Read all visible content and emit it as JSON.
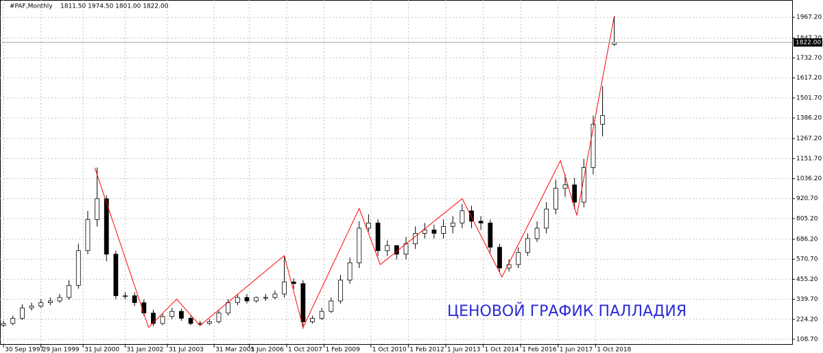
{
  "chart_data": {
    "type": "candlestick",
    "title": "#PAF,Monthly",
    "subtitle": "1811.50 1974.50 1801.00 1822.00",
    "annotation": "ЦЕНОВОЙ ГРАФИК ПАЛЛАДИЯ",
    "x": [
      0,
      4,
      8,
      12,
      16,
      20,
      24,
      28,
      32,
      36,
      40,
      44,
      48,
      52,
      56,
      60,
      64,
      68,
      72,
      76,
      80,
      84,
      88,
      92,
      96,
      100,
      104,
      108,
      112,
      116,
      120,
      124,
      128,
      132,
      136,
      140,
      144,
      148,
      152,
      156,
      160,
      164,
      168,
      172,
      176,
      180,
      184,
      188,
      192,
      196,
      200,
      204,
      208,
      212,
      216,
      220,
      224,
      228,
      232,
      236,
      240,
      244,
      248,
      252,
      256,
      261
    ],
    "open": [
      190,
      200,
      230,
      290,
      300,
      320,
      330,
      350,
      420,
      620,
      800,
      920,
      600,
      360,
      360,
      320,
      260,
      200,
      240,
      270,
      230,
      200,
      200,
      210,
      260,
      320,
      350,
      330,
      350,
      350,
      370,
      440,
      430,
      210,
      230,
      270,
      330,
      450,
      550,
      750,
      780,
      620,
      650,
      600,
      660,
      720,
      740,
      720,
      760,
      780,
      850,
      790,
      780,
      640,
      520,
      540,
      610,
      690,
      750,
      860,
      980,
      1000,
      900,
      1100,
      1350,
      1811.5
    ],
    "high": [
      215,
      245,
      310,
      320,
      340,
      350,
      370,
      450,
      660,
      850,
      1100,
      940,
      620,
      380,
      380,
      340,
      280,
      255,
      290,
      285,
      245,
      215,
      225,
      275,
      340,
      370,
      370,
      355,
      370,
      390,
      590,
      460,
      450,
      245,
      290,
      350,
      480,
      580,
      790,
      830,
      800,
      680,
      650,
      700,
      760,
      780,
      770,
      800,
      820,
      890,
      880,
      820,
      800,
      660,
      570,
      640,
      720,
      790,
      900,
      1030,
      1060,
      1040,
      1150,
      1400,
      1570,
      1974.5
    ],
    "low": [
      180,
      190,
      220,
      275,
      290,
      305,
      320,
      335,
      400,
      600,
      760,
      560,
      340,
      340,
      300,
      245,
      185,
      190,
      225,
      215,
      190,
      185,
      190,
      200,
      245,
      305,
      315,
      320,
      330,
      340,
      350,
      400,
      170,
      200,
      220,
      260,
      315,
      430,
      520,
      730,
      590,
      590,
      570,
      570,
      630,
      690,
      690,
      690,
      720,
      750,
      750,
      740,
      610,
      500,
      500,
      520,
      590,
      670,
      720,
      830,
      930,
      860,
      870,
      1060,
      1280,
      1801
    ],
    "close": [
      200,
      230,
      290,
      300,
      320,
      330,
      350,
      420,
      620,
      800,
      920,
      600,
      360,
      360,
      320,
      260,
      200,
      240,
      270,
      230,
      200,
      200,
      210,
      260,
      320,
      350,
      330,
      350,
      350,
      370,
      440,
      430,
      210,
      230,
      270,
      330,
      450,
      550,
      750,
      780,
      620,
      650,
      600,
      660,
      720,
      740,
      720,
      760,
      780,
      850,
      790,
      780,
      640,
      520,
      540,
      610,
      690,
      750,
      860,
      980,
      1000,
      900,
      1100,
      1350,
      1400,
      1822
    ],
    "up_color": "#ffffff",
    "down_color": "#000000",
    "zigzag": {
      "color": "#ff0000",
      "x": [
        39,
        62,
        74,
        84,
        120,
        128,
        152,
        161,
        196,
        213,
        238,
        245,
        261
      ],
      "values": [
        1099,
        177,
        340,
        188,
        592,
        177,
        864,
        540,
        920,
        468,
        1140,
        824,
        1975
      ]
    },
    "last_price": {
      "value": 1822,
      "label": "1822.00"
    },
    "xlim": [
      -1.5,
      337
    ],
    "ylim": [
      77,
      2067
    ],
    "grid": true,
    "xticks": [
      {
        "value": 0,
        "label": "30 Sep 1997"
      },
      {
        "value": 16,
        "label": "29 Jan 1999"
      },
      {
        "value": 34,
        "label": "31 Jul 2000"
      },
      {
        "value": 52,
        "label": "31 Jan 2002"
      },
      {
        "value": 70,
        "label": "31 Jul 2003"
      },
      {
        "value": 90,
        "label": "31 Mar 2005"
      },
      {
        "value": 105,
        "label": "1 Jun 2006"
      },
      {
        "value": 121,
        "label": "1 Oct 2007"
      },
      {
        "value": 137,
        "label": "1 Feb 2009"
      },
      {
        "value": 157,
        "label": "1 Oct 2010"
      },
      {
        "value": 173,
        "label": "1 Feb 2012"
      },
      {
        "value": 189,
        "label": "1 Jun 2013"
      },
      {
        "value": 205,
        "label": "1 Oct 2014"
      },
      {
        "value": 221,
        "label": "1 Feb 2016"
      },
      {
        "value": 237,
        "label": "1 Jun 2017"
      },
      {
        "value": 253,
        "label": "1 Oct 2018"
      }
    ],
    "yticks": [
      {
        "value": 108.7,
        "label": "108.70"
      },
      {
        "value": 224.2,
        "label": "224.20"
      },
      {
        "value": 339.7,
        "label": "339.70"
      },
      {
        "value": 455.2,
        "label": "455.20"
      },
      {
        "value": 570.7,
        "label": "570.70"
      },
      {
        "value": 686.2,
        "label": "686.20"
      },
      {
        "value": 805.2,
        "label": "805.20"
      },
      {
        "value": 920.7,
        "label": "920.70"
      },
      {
        "value": 1036.2,
        "label": "1036.20"
      },
      {
        "value": 1151.7,
        "label": "1151.70"
      },
      {
        "value": 1267.2,
        "label": "1267.20"
      },
      {
        "value": 1386.2,
        "label": "1386.20"
      },
      {
        "value": 1501.7,
        "label": "1501.70"
      },
      {
        "value": 1617.2,
        "label": "1617.20"
      },
      {
        "value": 1732.7,
        "label": "1732.70"
      },
      {
        "value": 1847.2,
        "label": "1847.20"
      },
      {
        "value": 1967.2,
        "label": "1967.20"
      }
    ]
  }
}
